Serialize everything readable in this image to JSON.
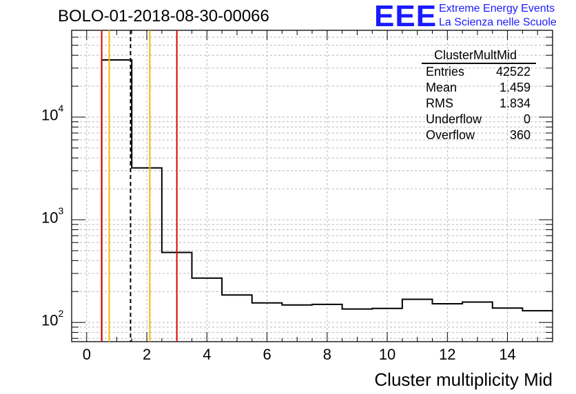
{
  "title": "BOLO-01-2018-08-30-00066",
  "logo": {
    "mark": "EEE",
    "line1": "Extreme Energy Events",
    "line2": "La Scienza nelle Scuole",
    "color": "#1a1aff"
  },
  "stats": {
    "name": "ClusterMultMid",
    "rows": [
      {
        "label": "Entries",
        "value": "42522"
      },
      {
        "label": "Mean",
        "value": "1.459"
      },
      {
        "label": "RMS",
        "value": "1.834"
      },
      {
        "label": "Underflow",
        "value": "0"
      },
      {
        "label": "Overflow",
        "value": "360"
      }
    ]
  },
  "chart_data": {
    "type": "bar",
    "xlabel": "Cluster multiplicity Mid",
    "ylabel": "",
    "ylog": true,
    "xlim": [
      -0.5,
      15.5
    ],
    "ylim": [
      65,
      70000
    ],
    "grid": true,
    "x_ticks": [
      0,
      2,
      4,
      6,
      8,
      10,
      12,
      14
    ],
    "y_ticks": [
      {
        "base": "10",
        "exp": "2",
        "value": 100
      },
      {
        "base": "10",
        "exp": "3",
        "value": 1000
      },
      {
        "base": "10",
        "exp": "4",
        "value": 10000
      }
    ],
    "bin_edges": [
      0.5,
      1.5,
      2.5,
      3.5,
      4.5,
      5.5,
      6.5,
      7.5,
      8.5,
      9.5,
      10.5,
      11.5,
      12.5,
      13.5,
      14.5,
      15.5
    ],
    "values": [
      36000,
      3200,
      480,
      270,
      185,
      155,
      148,
      150,
      135,
      137,
      168,
      152,
      158,
      138,
      130
    ],
    "colors": {
      "histogram": "#000000",
      "red": "#e00000",
      "orange": "#f5b800"
    },
    "vertical_lines": [
      {
        "x": 0.5,
        "color": "red",
        "style": "solid"
      },
      {
        "x": 0.75,
        "color": "orange",
        "style": "solid"
      },
      {
        "x": 1.459,
        "color": "black",
        "style": "dashed"
      },
      {
        "x": 2.1,
        "color": "orange",
        "style": "solid"
      },
      {
        "x": 3.0,
        "color": "red",
        "style": "solid"
      }
    ]
  }
}
